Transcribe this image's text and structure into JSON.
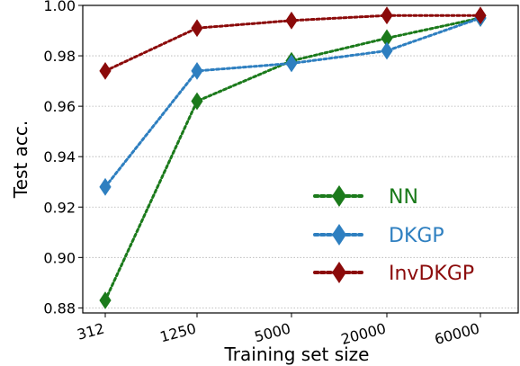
{
  "chart_data": {
    "type": "line",
    "xlabel": "Training set size",
    "ylabel": "Test acc.",
    "categories": [
      "312",
      "1250",
      "5000",
      "20000",
      "60000"
    ],
    "ylim": [
      0.878,
      1.0
    ],
    "yticks": [
      "0.88",
      "0.90",
      "0.92",
      "0.94",
      "0.96",
      "0.98",
      "1.00"
    ],
    "grid": "horizontal dotted",
    "legend_position": "lower-right",
    "marker": "diamond",
    "line_style": "dotted",
    "series": [
      {
        "name": "NN",
        "color": "#1b7a1b",
        "values": [
          0.883,
          0.962,
          0.978,
          0.987,
          0.995
        ]
      },
      {
        "name": "DKGP",
        "color": "#2e7fc0",
        "values": [
          0.928,
          0.974,
          0.977,
          0.982,
          0.995
        ]
      },
      {
        "name": "InvDKGP",
        "color": "#8b0a0a",
        "values": [
          0.974,
          0.991,
          0.994,
          0.996,
          0.996
        ]
      }
    ]
  }
}
